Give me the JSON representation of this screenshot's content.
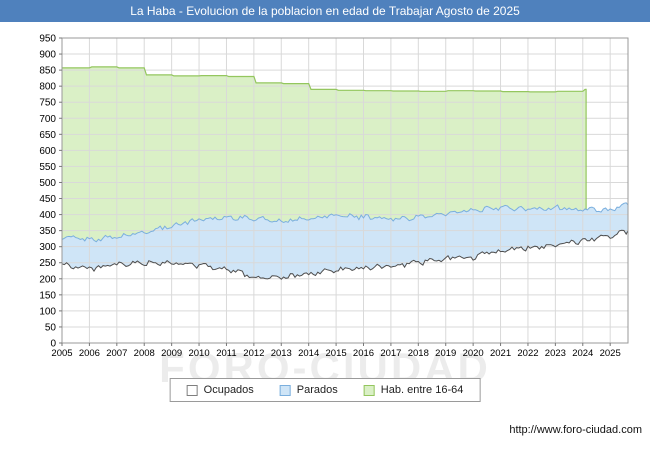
{
  "title_bar": {
    "text": "La Haba - Evolucion de la poblacion en edad de Trabajar Agosto de 2025",
    "bg": "#4f81bd",
    "fg": "#ffffff"
  },
  "watermark": "FORO-CIUDAD",
  "footer": {
    "url": "http://www.foro-ciudad.com"
  },
  "legend": {
    "position": "bottom-center",
    "items": [
      {
        "label": "Ocupados",
        "fill": "#ffffff",
        "border": "#7f7f7f"
      },
      {
        "label": "Parados",
        "fill": "#cfe5f7",
        "border": "#7bafde"
      },
      {
        "label": "Hab. entre 16-64",
        "fill": "#daf0c6",
        "border": "#94c65e"
      }
    ]
  },
  "chart_data": {
    "type": "area",
    "title": "La Haba - Evolucion de la poblacion en edad de Trabajar Agosto de 2025",
    "xlabel": "",
    "ylabel": "",
    "ylim": [
      0,
      950
    ],
    "ytick_step": 50,
    "x_ticks": [
      2005,
      2006,
      2007,
      2008,
      2009,
      2010,
      2011,
      2012,
      2013,
      2014,
      2015,
      2016,
      2017,
      2018,
      2019,
      2020,
      2021,
      2022,
      2023,
      2024,
      2025
    ],
    "x_end": 2025.65,
    "grid": true,
    "grid_color": "#d9d9d9",
    "legend_position": "bottom",
    "note": "Monthly jagged series; 'Parados' boundary values below are cumulative (Ocupados+Parados top edge). 'Hab. entre 16-64' is annual stepped data ending early 2024 with a vertical drop.",
    "series": [
      {
        "key": "hab",
        "name": "Hab. entre 16-64",
        "interpolation": "step",
        "fill": "#daf0c6",
        "line": "#94c65e",
        "jitter": 0,
        "end_x": 2024.12,
        "anchors_x": [
          2005,
          2006,
          2007,
          2008,
          2009,
          2010,
          2011,
          2012,
          2013,
          2014,
          2015,
          2016,
          2017,
          2018,
          2019,
          2020,
          2021,
          2022,
          2023,
          2024
        ],
        "anchors_y": [
          857,
          860,
          857,
          835,
          832,
          833,
          830,
          810,
          808,
          790,
          787,
          786,
          785,
          784,
          786,
          785,
          783,
          782,
          784,
          790
        ]
      },
      {
        "key": "par",
        "name": "Parados",
        "values_are": "ocupados_plus_parados_top_boundary",
        "interpolation": "linear",
        "fill": "#cfe5f7",
        "line": "#7bafde",
        "jitter": 8,
        "anchors_x": [
          2005,
          2006,
          2007,
          2008,
          2009,
          2010,
          2011,
          2012,
          2013,
          2014,
          2015,
          2016,
          2017,
          2018,
          2019,
          2020,
          2021,
          2022,
          2023,
          2024,
          2025,
          2025.65
        ],
        "anchors_y": [
          330,
          322,
          330,
          345,
          365,
          385,
          392,
          388,
          380,
          388,
          398,
          392,
          386,
          392,
          402,
          412,
          422,
          415,
          422,
          415,
          415,
          430
        ]
      },
      {
        "key": "ocu",
        "name": "Ocupados",
        "interpolation": "linear",
        "fill": "#ffffff",
        "line": "#4d4d4d",
        "jitter": 9,
        "anchors_x": [
          2005,
          2006,
          2007,
          2008,
          2009,
          2010,
          2011,
          2012,
          2013,
          2014,
          2015,
          2016,
          2017,
          2018,
          2019,
          2020,
          2021,
          2022,
          2023,
          2024,
          2025,
          2025.65
        ],
        "anchors_y": [
          245,
          232,
          242,
          250,
          248,
          242,
          232,
          205,
          202,
          215,
          227,
          235,
          240,
          250,
          262,
          268,
          288,
          297,
          307,
          318,
          335,
          350
        ]
      }
    ]
  }
}
